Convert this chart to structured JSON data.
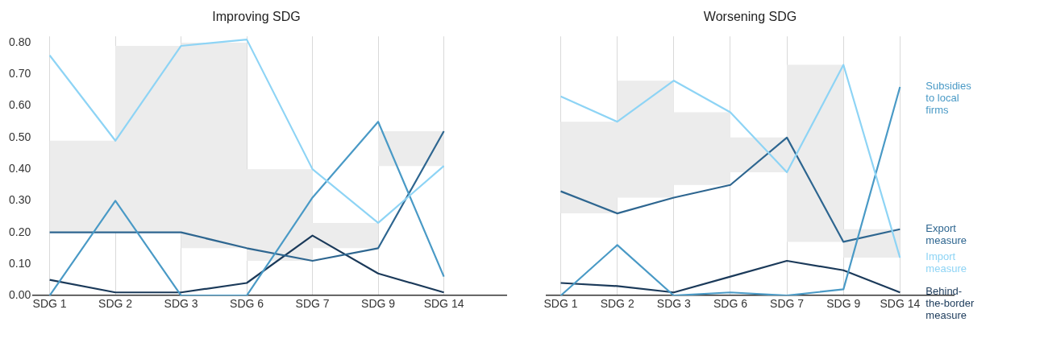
{
  "chart_data": [
    {
      "type": "line",
      "title": "Improving SDG",
      "categories": [
        "SDG 1",
        "SDG 2",
        "SDG 3",
        "SDG 6",
        "SDG 7",
        "SDG 9",
        "SDG 14"
      ],
      "ylim": [
        0,
        0.82
      ],
      "yticks": [
        {
          "value": 0,
          "label": "0.00"
        },
        {
          "value": 0.1,
          "label": "0.10"
        },
        {
          "value": 0.2,
          "label": "0.20"
        },
        {
          "value": 0.3,
          "label": "0.30"
        },
        {
          "value": 0.4,
          "label": "0.40"
        },
        {
          "value": 0.5,
          "label": "0.50"
        },
        {
          "value": 0.6,
          "label": "0.60"
        },
        {
          "value": 0.7,
          "label": "0.70"
        },
        {
          "value": 0.8,
          "label": "0.80"
        }
      ],
      "grid": "x",
      "series": [
        {
          "type": "line",
          "color": "#ececec",
          "x": [
            "SDG 1",
            "SDG 2",
            "SDG 2",
            "SDG 3",
            "SDG 3",
            "SDG 6",
            "SDG 6",
            "SDG 7",
            "SDG 7",
            "SDG 9",
            "SDG 9",
            "SDG 14"
          ],
          "values": [
            null,
            null,
            null,
            null,
            null,
            null,
            null,
            null,
            null,
            null,
            null,
            null
          ],
          "lower": [
            0.2,
            0.2,
            0.2,
            0.2,
            0.15,
            0.15,
            0.11,
            0.11,
            0.15,
            0.15,
            0.41,
            0.41
          ],
          "upper": [
            0.49,
            0.49,
            0.79,
            0.79,
            0.8,
            0.8,
            0.4,
            0.4,
            0.23,
            0.23,
            0.52,
            0.52
          ]
        },
        {
          "color": "#8ed4f5",
          "values": [
            0.76,
            0.49,
            0.79,
            0.81,
            0.4,
            0.23,
            0.41
          ]
        },
        {
          "color": "#4a9ac6",
          "values": [
            0.0,
            0.3,
            0.0,
            0.0,
            0.31,
            0.55,
            0.06
          ]
        },
        {
          "color": "#2e6690",
          "values": [
            0.2,
            0.2,
            0.2,
            0.15,
            0.11,
            0.15,
            0.52
          ]
        },
        {
          "color": "#1b3a5a",
          "values": [
            0.05,
            0.01,
            0.01,
            0.04,
            0.19,
            0.07,
            0.01
          ]
        }
      ]
    },
    {
      "type": "line",
      "title": "Worsening SDG",
      "categories": [
        "SDG 1",
        "SDG 2",
        "SDG 3",
        "SDG 6",
        "SDG 7",
        "SDG 9",
        "SDG 14"
      ],
      "ylim": [
        0,
        0.82
      ],
      "tick_labels": "x",
      "grid": "x",
      "legend": "right",
      "series": [
        {
          "type": "line",
          "color": "#ececec",
          "x": [
            "SDG 1",
            "SDG 2",
            "SDG 2",
            "SDG 3",
            "SDG 3",
            "SDG 6",
            "SDG 6",
            "SDG 7",
            "SDG 7",
            "SDG 9",
            "SDG 9",
            "SDG 14"
          ],
          "values": [
            null,
            null,
            null,
            null,
            null,
            null,
            null,
            null,
            null,
            null,
            null,
            null
          ],
          "lower": [
            0.26,
            0.26,
            0.31,
            0.31,
            0.35,
            0.35,
            0.39,
            0.39,
            0.17,
            0.17,
            0.12,
            0.12
          ],
          "upper": [
            0.55,
            0.55,
            0.68,
            0.68,
            0.58,
            0.58,
            0.5,
            0.5,
            0.73,
            0.73,
            0.21,
            0.21
          ]
        },
        {
          "name": "Import measure",
          "color": "#8ed4f5",
          "values": [
            0.63,
            0.55,
            0.68,
            0.58,
            0.39,
            0.73,
            0.12
          ]
        },
        {
          "name": "Subsidies to local firms",
          "color": "#4a9ac6",
          "values": [
            0.0,
            0.16,
            0.0,
            0.01,
            0.0,
            0.02,
            0.66
          ]
        },
        {
          "name": "Export measure",
          "color": "#2e6690",
          "values": [
            0.33,
            0.26,
            0.31,
            0.35,
            0.5,
            0.17,
            0.21
          ]
        },
        {
          "name": "Behind-the-border measure",
          "color": "#1b3a5a",
          "values": [
            0.04,
            0.03,
            0.01,
            0.06,
            0.11,
            0.08,
            0.01
          ]
        }
      ]
    }
  ]
}
